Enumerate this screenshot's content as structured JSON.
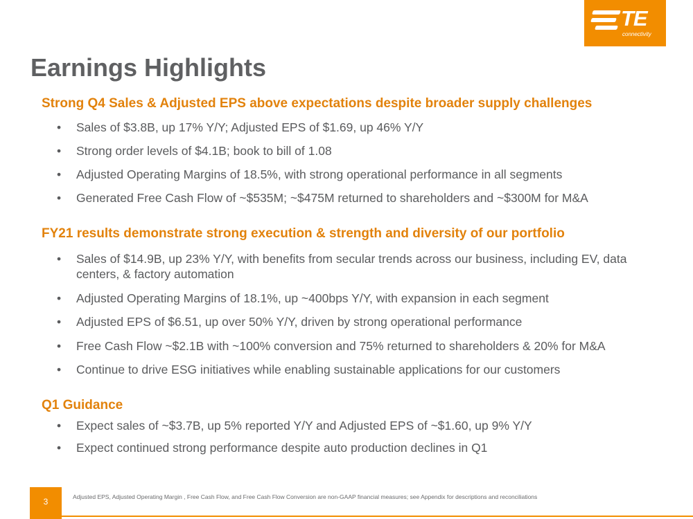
{
  "logo": {
    "text": "TE",
    "subtext": "connectivity",
    "color": "#f28d00"
  },
  "title": "Earnings Highlights",
  "sections": [
    {
      "heading": "Strong Q4 Sales & Adjusted EPS above expectations despite broader supply challenges",
      "bullets": [
        "Sales of $3.8B, up 17% Y/Y; Adjusted EPS of $1.69, up 46% Y/Y",
        "Strong order levels of $4.1B; book to bill of 1.08",
        "Adjusted Operating Margins of 18.5%, with strong operational performance in all segments",
        "Generated Free Cash Flow of ~$535M; ~$475M returned to shareholders and ~$300M for M&A"
      ]
    },
    {
      "heading": "FY21 results demonstrate strong execution & strength and diversity of our portfolio",
      "bullets": [
        "Sales of $14.9B, up 23% Y/Y, with benefits from secular trends across our business, including EV, data centers, & factory automation",
        "Adjusted Operating Margins of 18.1%, up ~400bps Y/Y, with expansion in each segment",
        "Adjusted EPS of $6.51, up over 50% Y/Y, driven by strong operational performance",
        "Free Cash Flow ~$2.1B with ~100% conversion and 75% returned to shareholders & 20% for M&A",
        "Continue to drive ESG initiatives while enabling sustainable applications for our customers"
      ]
    },
    {
      "heading": "Q1 Guidance",
      "bullets": [
        "Expect sales of ~$3.7B, up 5% reported Y/Y and Adjusted EPS of ~$1.60, up 9% Y/Y",
        "Expect continued strong performance despite auto production declines in Q1"
      ]
    }
  ],
  "bullet_glyph": "•",
  "footer": {
    "page_number": "3",
    "footnote": "Adjusted EPS, Adjusted Operating Margin , Free Cash Flow, and Free Cash Flow Conversion are non-GAAP financial measures; see Appendix for descriptions and reconciliations"
  },
  "colors": {
    "accent": "#f28d00",
    "heading": "#e2820c",
    "title": "#5f6062",
    "body": "#5a5b5d"
  }
}
